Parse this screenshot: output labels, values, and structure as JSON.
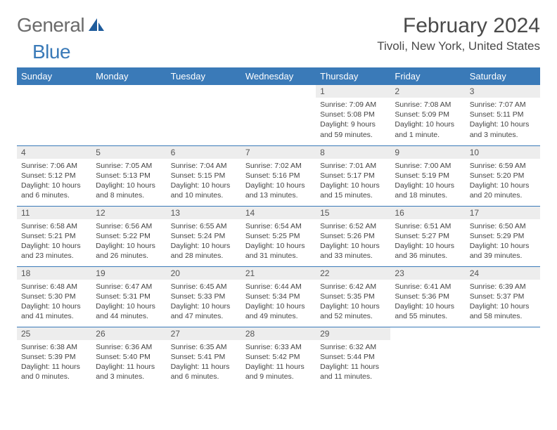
{
  "brand": {
    "word1": "General",
    "word2": "Blue",
    "icon_color": "#1f5c9c"
  },
  "title": "February 2024",
  "location": "Tivoli, New York, United States",
  "header_bg": "#3a7ab8",
  "header_text_color": "#ffffff",
  "divider_color": "#3a7ab8",
  "daybar_bg": "#ededed",
  "dayNames": [
    "Sunday",
    "Monday",
    "Tuesday",
    "Wednesday",
    "Thursday",
    "Friday",
    "Saturday"
  ],
  "weeks": [
    [
      null,
      null,
      null,
      null,
      {
        "n": "1",
        "sunrise": "Sunrise: 7:09 AM",
        "sunset": "Sunset: 5:08 PM",
        "daylight": "Daylight: 9 hours and 59 minutes."
      },
      {
        "n": "2",
        "sunrise": "Sunrise: 7:08 AM",
        "sunset": "Sunset: 5:09 PM",
        "daylight": "Daylight: 10 hours and 1 minute."
      },
      {
        "n": "3",
        "sunrise": "Sunrise: 7:07 AM",
        "sunset": "Sunset: 5:11 PM",
        "daylight": "Daylight: 10 hours and 3 minutes."
      }
    ],
    [
      {
        "n": "4",
        "sunrise": "Sunrise: 7:06 AM",
        "sunset": "Sunset: 5:12 PM",
        "daylight": "Daylight: 10 hours and 6 minutes."
      },
      {
        "n": "5",
        "sunrise": "Sunrise: 7:05 AM",
        "sunset": "Sunset: 5:13 PM",
        "daylight": "Daylight: 10 hours and 8 minutes."
      },
      {
        "n": "6",
        "sunrise": "Sunrise: 7:04 AM",
        "sunset": "Sunset: 5:15 PM",
        "daylight": "Daylight: 10 hours and 10 minutes."
      },
      {
        "n": "7",
        "sunrise": "Sunrise: 7:02 AM",
        "sunset": "Sunset: 5:16 PM",
        "daylight": "Daylight: 10 hours and 13 minutes."
      },
      {
        "n": "8",
        "sunrise": "Sunrise: 7:01 AM",
        "sunset": "Sunset: 5:17 PM",
        "daylight": "Daylight: 10 hours and 15 minutes."
      },
      {
        "n": "9",
        "sunrise": "Sunrise: 7:00 AM",
        "sunset": "Sunset: 5:19 PM",
        "daylight": "Daylight: 10 hours and 18 minutes."
      },
      {
        "n": "10",
        "sunrise": "Sunrise: 6:59 AM",
        "sunset": "Sunset: 5:20 PM",
        "daylight": "Daylight: 10 hours and 20 minutes."
      }
    ],
    [
      {
        "n": "11",
        "sunrise": "Sunrise: 6:58 AM",
        "sunset": "Sunset: 5:21 PM",
        "daylight": "Daylight: 10 hours and 23 minutes."
      },
      {
        "n": "12",
        "sunrise": "Sunrise: 6:56 AM",
        "sunset": "Sunset: 5:22 PM",
        "daylight": "Daylight: 10 hours and 26 minutes."
      },
      {
        "n": "13",
        "sunrise": "Sunrise: 6:55 AM",
        "sunset": "Sunset: 5:24 PM",
        "daylight": "Daylight: 10 hours and 28 minutes."
      },
      {
        "n": "14",
        "sunrise": "Sunrise: 6:54 AM",
        "sunset": "Sunset: 5:25 PM",
        "daylight": "Daylight: 10 hours and 31 minutes."
      },
      {
        "n": "15",
        "sunrise": "Sunrise: 6:52 AM",
        "sunset": "Sunset: 5:26 PM",
        "daylight": "Daylight: 10 hours and 33 minutes."
      },
      {
        "n": "16",
        "sunrise": "Sunrise: 6:51 AM",
        "sunset": "Sunset: 5:27 PM",
        "daylight": "Daylight: 10 hours and 36 minutes."
      },
      {
        "n": "17",
        "sunrise": "Sunrise: 6:50 AM",
        "sunset": "Sunset: 5:29 PM",
        "daylight": "Daylight: 10 hours and 39 minutes."
      }
    ],
    [
      {
        "n": "18",
        "sunrise": "Sunrise: 6:48 AM",
        "sunset": "Sunset: 5:30 PM",
        "daylight": "Daylight: 10 hours and 41 minutes."
      },
      {
        "n": "19",
        "sunrise": "Sunrise: 6:47 AM",
        "sunset": "Sunset: 5:31 PM",
        "daylight": "Daylight: 10 hours and 44 minutes."
      },
      {
        "n": "20",
        "sunrise": "Sunrise: 6:45 AM",
        "sunset": "Sunset: 5:33 PM",
        "daylight": "Daylight: 10 hours and 47 minutes."
      },
      {
        "n": "21",
        "sunrise": "Sunrise: 6:44 AM",
        "sunset": "Sunset: 5:34 PM",
        "daylight": "Daylight: 10 hours and 49 minutes."
      },
      {
        "n": "22",
        "sunrise": "Sunrise: 6:42 AM",
        "sunset": "Sunset: 5:35 PM",
        "daylight": "Daylight: 10 hours and 52 minutes."
      },
      {
        "n": "23",
        "sunrise": "Sunrise: 6:41 AM",
        "sunset": "Sunset: 5:36 PM",
        "daylight": "Daylight: 10 hours and 55 minutes."
      },
      {
        "n": "24",
        "sunrise": "Sunrise: 6:39 AM",
        "sunset": "Sunset: 5:37 PM",
        "daylight": "Daylight: 10 hours and 58 minutes."
      }
    ],
    [
      {
        "n": "25",
        "sunrise": "Sunrise: 6:38 AM",
        "sunset": "Sunset: 5:39 PM",
        "daylight": "Daylight: 11 hours and 0 minutes."
      },
      {
        "n": "26",
        "sunrise": "Sunrise: 6:36 AM",
        "sunset": "Sunset: 5:40 PM",
        "daylight": "Daylight: 11 hours and 3 minutes."
      },
      {
        "n": "27",
        "sunrise": "Sunrise: 6:35 AM",
        "sunset": "Sunset: 5:41 PM",
        "daylight": "Daylight: 11 hours and 6 minutes."
      },
      {
        "n": "28",
        "sunrise": "Sunrise: 6:33 AM",
        "sunset": "Sunset: 5:42 PM",
        "daylight": "Daylight: 11 hours and 9 minutes."
      },
      {
        "n": "29",
        "sunrise": "Sunrise: 6:32 AM",
        "sunset": "Sunset: 5:44 PM",
        "daylight": "Daylight: 11 hours and 11 minutes."
      },
      null,
      null
    ]
  ]
}
